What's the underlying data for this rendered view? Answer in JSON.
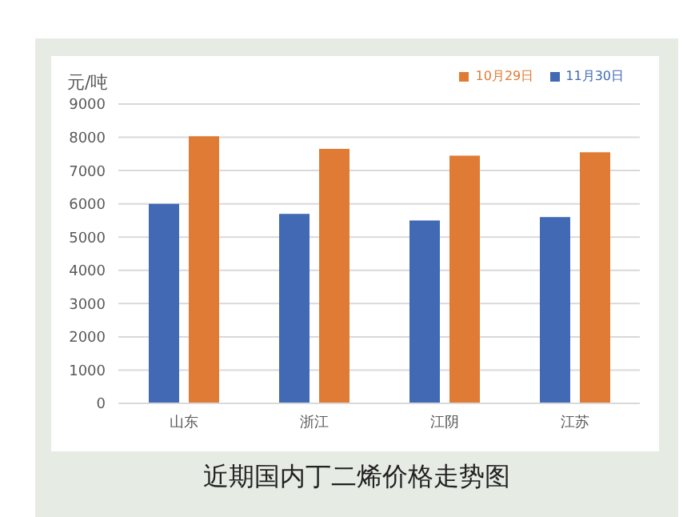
{
  "chart_data": {
    "type": "bar",
    "title": "近期国内丁二烯价格走势图",
    "ylabel": "元/吨",
    "categories": [
      "山东",
      "浙江",
      "江阴",
      "江苏"
    ],
    "series": [
      {
        "name": "11月30日",
        "color": "#4169b4",
        "values": [
          6000,
          5700,
          5500,
          5600
        ]
      },
      {
        "name": "10月29日",
        "color": "#e07b35",
        "values": [
          8030,
          7650,
          7450,
          7550
        ]
      }
    ],
    "ylim": [
      0,
      9000
    ],
    "yticks": [
      0,
      1000,
      2000,
      3000,
      4000,
      5000,
      6000,
      7000,
      8000,
      9000
    ],
    "grid": "y",
    "legend": "top right"
  }
}
